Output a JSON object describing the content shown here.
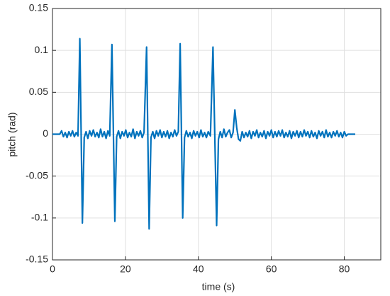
{
  "chart_data": {
    "type": "line",
    "xlabel": "time (s)",
    "ylabel": "pitch (rad)",
    "color": "#0072BD",
    "grid": true,
    "xlim": [
      0,
      90
    ],
    "xticks": [
      0,
      20,
      40,
      60,
      80
    ],
    "ylim": [
      -0.15,
      0.15
    ],
    "yticks": [
      0.15,
      0.1,
      0.05,
      0,
      -0.05,
      -0.1,
      -0.15
    ],
    "x": [
      0,
      2,
      2.5,
      3,
      3.5,
      4,
      4.5,
      5,
      5.5,
      6,
      6.5,
      7,
      7.5,
      8.2,
      8.7,
      9.2,
      9.7,
      10.2,
      10.7,
      11.2,
      11.7,
      12.2,
      12.7,
      13.2,
      13.7,
      14.2,
      14.7,
      15.2,
      15.7,
      16.3,
      17.1,
      17.6,
      18.1,
      18.6,
      19.1,
      19.6,
      20.1,
      20.6,
      21.1,
      21.6,
      22.1,
      22.6,
      23.1,
      23.6,
      24.1,
      24.6,
      25.1,
      25.8,
      26.5,
      27,
      27.5,
      28,
      28.5,
      29,
      29.5,
      30,
      30.5,
      31,
      31.5,
      32,
      32.5,
      33,
      33.5,
      34,
      34.5,
      35,
      35.7,
      36.2,
      36.7,
      37.2,
      37.7,
      38.2,
      38.7,
      39.2,
      39.7,
      40.2,
      40.7,
      41.2,
      41.7,
      42.2,
      42.7,
      43.3,
      44,
      45,
      45.5,
      46,
      46.5,
      47,
      47.5,
      48,
      48.5,
      49,
      49.5,
      50,
      50.5,
      51,
      51.5,
      52,
      52.5,
      53,
      53.5,
      54,
      54.5,
      55,
      55.5,
      56,
      56.5,
      57,
      57.5,
      58,
      58.5,
      59,
      59.5,
      60,
      60.5,
      61,
      61.5,
      62,
      62.5,
      63,
      63.5,
      64,
      64.5,
      65,
      65.5,
      66,
      66.5,
      67,
      67.5,
      68,
      68.5,
      69,
      69.5,
      70,
      70.5,
      71,
      71.5,
      72,
      72.5,
      73,
      73.5,
      74,
      74.5,
      75,
      75.5,
      76,
      76.5,
      77,
      77.5,
      78,
      78.5,
      79,
      79.5,
      80,
      80.5,
      81,
      83
    ],
    "values": [
      0,
      0,
      0.004,
      -0.003,
      0.002,
      -0.004,
      0.003,
      -0.002,
      0.004,
      -0.003,
      0.002,
      -0.002,
      0.114,
      -0.106,
      -0.004,
      0.003,
      -0.005,
      0.004,
      -0.002,
      0.005,
      -0.003,
      0.002,
      -0.004,
      0.006,
      -0.003,
      0.003,
      -0.005,
      0.004,
      -0.002,
      0.107,
      -0.104,
      -0.003,
      0.004,
      -0.005,
      0.003,
      -0.002,
      0.005,
      -0.004,
      0.002,
      -0.003,
      0.006,
      -0.005,
      0.003,
      -0.002,
      0.004,
      -0.004,
      0.002,
      0.104,
      -0.113,
      -0.004,
      0.003,
      -0.005,
      0.004,
      -0.002,
      0.005,
      -0.004,
      0.003,
      -0.003,
      0.004,
      -0.005,
      0.002,
      -0.003,
      0.005,
      -0.002,
      0.003,
      0.108,
      -0.1,
      -0.004,
      0.004,
      -0.003,
      0.002,
      -0.005,
      0.004,
      -0.002,
      0.003,
      -0.004,
      0.005,
      -0.003,
      0.002,
      -0.004,
      0.003,
      -0.002,
      0.104,
      -0.109,
      -0.006,
      0.003,
      -0.004,
      0.006,
      -0.003,
      0.002,
      0.005,
      -0.004,
      0.002,
      0.029,
      0.008,
      -0.006,
      -0.008,
      0.003,
      -0.004,
      0.002,
      -0.003,
      0.004,
      -0.005,
      0.003,
      -0.002,
      0.005,
      -0.004,
      0.002,
      -0.003,
      0.004,
      -0.005,
      0.003,
      -0.002,
      0.005,
      -0.004,
      0.003,
      -0.003,
      0.004,
      -0.002,
      0.005,
      -0.004,
      0.002,
      -0.003,
      0.004,
      -0.005,
      0.003,
      -0.002,
      0.004,
      -0.004,
      0.003,
      -0.003,
      0.005,
      -0.002,
      0.003,
      -0.004,
      0.004,
      -0.003,
      0.002,
      -0.005,
      0.004,
      -0.002,
      0.003,
      -0.004,
      0.005,
      -0.003,
      0.002,
      -0.004,
      0.003,
      -0.002,
      0.004,
      -0.003,
      0.002,
      -0.004,
      0.003,
      -0.002,
      0,
      0
    ]
  }
}
